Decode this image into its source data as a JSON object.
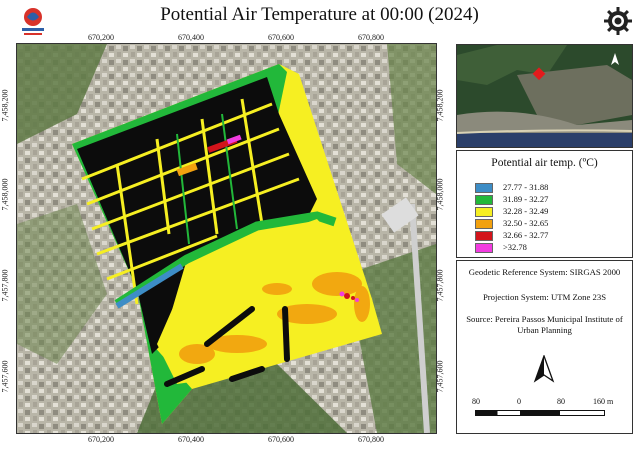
{
  "title": "Potential Air Temperature at 00:00 (2024)",
  "ticks": {
    "x_top": [
      "670,200",
      "670,400",
      "670,600",
      "670,800"
    ],
    "x_bottom": [
      "670,200",
      "670,400",
      "670,600",
      "670,800"
    ],
    "y_left": [
      "7,458,200",
      "7,458,000",
      "7,457,800",
      "7,457,600"
    ],
    "y_right": [
      "7,458,200",
      "7,458,000",
      "7,457,800",
      "7,457,600"
    ]
  },
  "legend": {
    "title": "Potential air temp. (ºC)",
    "items": [
      {
        "label": "27.77 - 31.88",
        "color": "#3d8dc6"
      },
      {
        "label": "31.89 - 32.27",
        "color": "#22b83a"
      },
      {
        "label": "32.28 - 32.49",
        "color": "#f6ef22"
      },
      {
        "label": "32.50 - 32.65",
        "color": "#f2a10f"
      },
      {
        "label": "32.66 - 32.77",
        "color": "#d3141b"
      },
      {
        "label": ">32.78",
        "color": "#f23ce0"
      }
    ]
  },
  "info": {
    "datum": "Geodetic Reference System: SIRGAS 2000",
    "projection": "Projection System: UTM Zone 23S",
    "source": "Source: Pereira Passos Municipal Institute of Urban Planning"
  },
  "scalebar": {
    "labels": [
      "80",
      "0",
      "80",
      "160 m"
    ]
  },
  "north_label": "N"
}
